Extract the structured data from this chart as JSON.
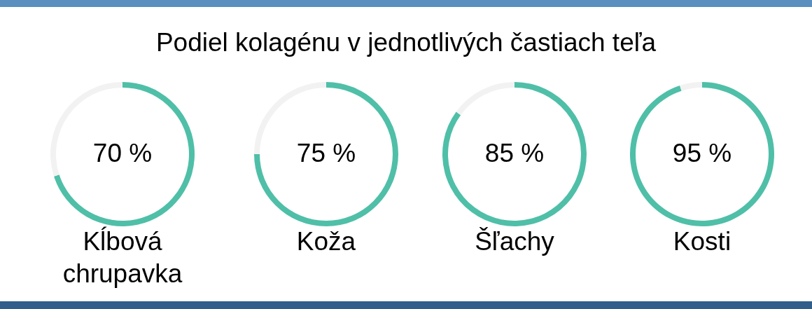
{
  "chart_data": [
    {
      "type": "donut",
      "title": "Podiel kolagénu v jednotlivých častiach teľa",
      "categories": [
        "Kĺbová chrupavka",
        null
      ],
      "values": [
        70,
        30
      ],
      "colors": [
        "#4fbfa8",
        "#f2f2f2"
      ],
      "value_labels": [
        "70 %",
        null
      ]
    },
    {
      "type": "donut",
      "categories": [
        "Koža",
        null
      ],
      "values": [
        75,
        25
      ],
      "colors": [
        "#4fbfa8",
        "#f2f2f2"
      ],
      "value_labels": [
        "75 %",
        null
      ]
    },
    {
      "type": "donut",
      "categories": [
        "Šľachy",
        null
      ],
      "values": [
        85,
        15
      ],
      "colors": [
        "#4fbfa8",
        "#f2f2f2"
      ],
      "value_labels": [
        "85 %",
        null
      ]
    },
    {
      "type": "donut",
      "categories": [
        "Kosti",
        null
      ],
      "values": [
        95,
        5
      ],
      "colors": [
        "#4fbfa8",
        "#f2f2f2"
      ],
      "value_labels": [
        "95 %",
        null
      ]
    }
  ]
}
